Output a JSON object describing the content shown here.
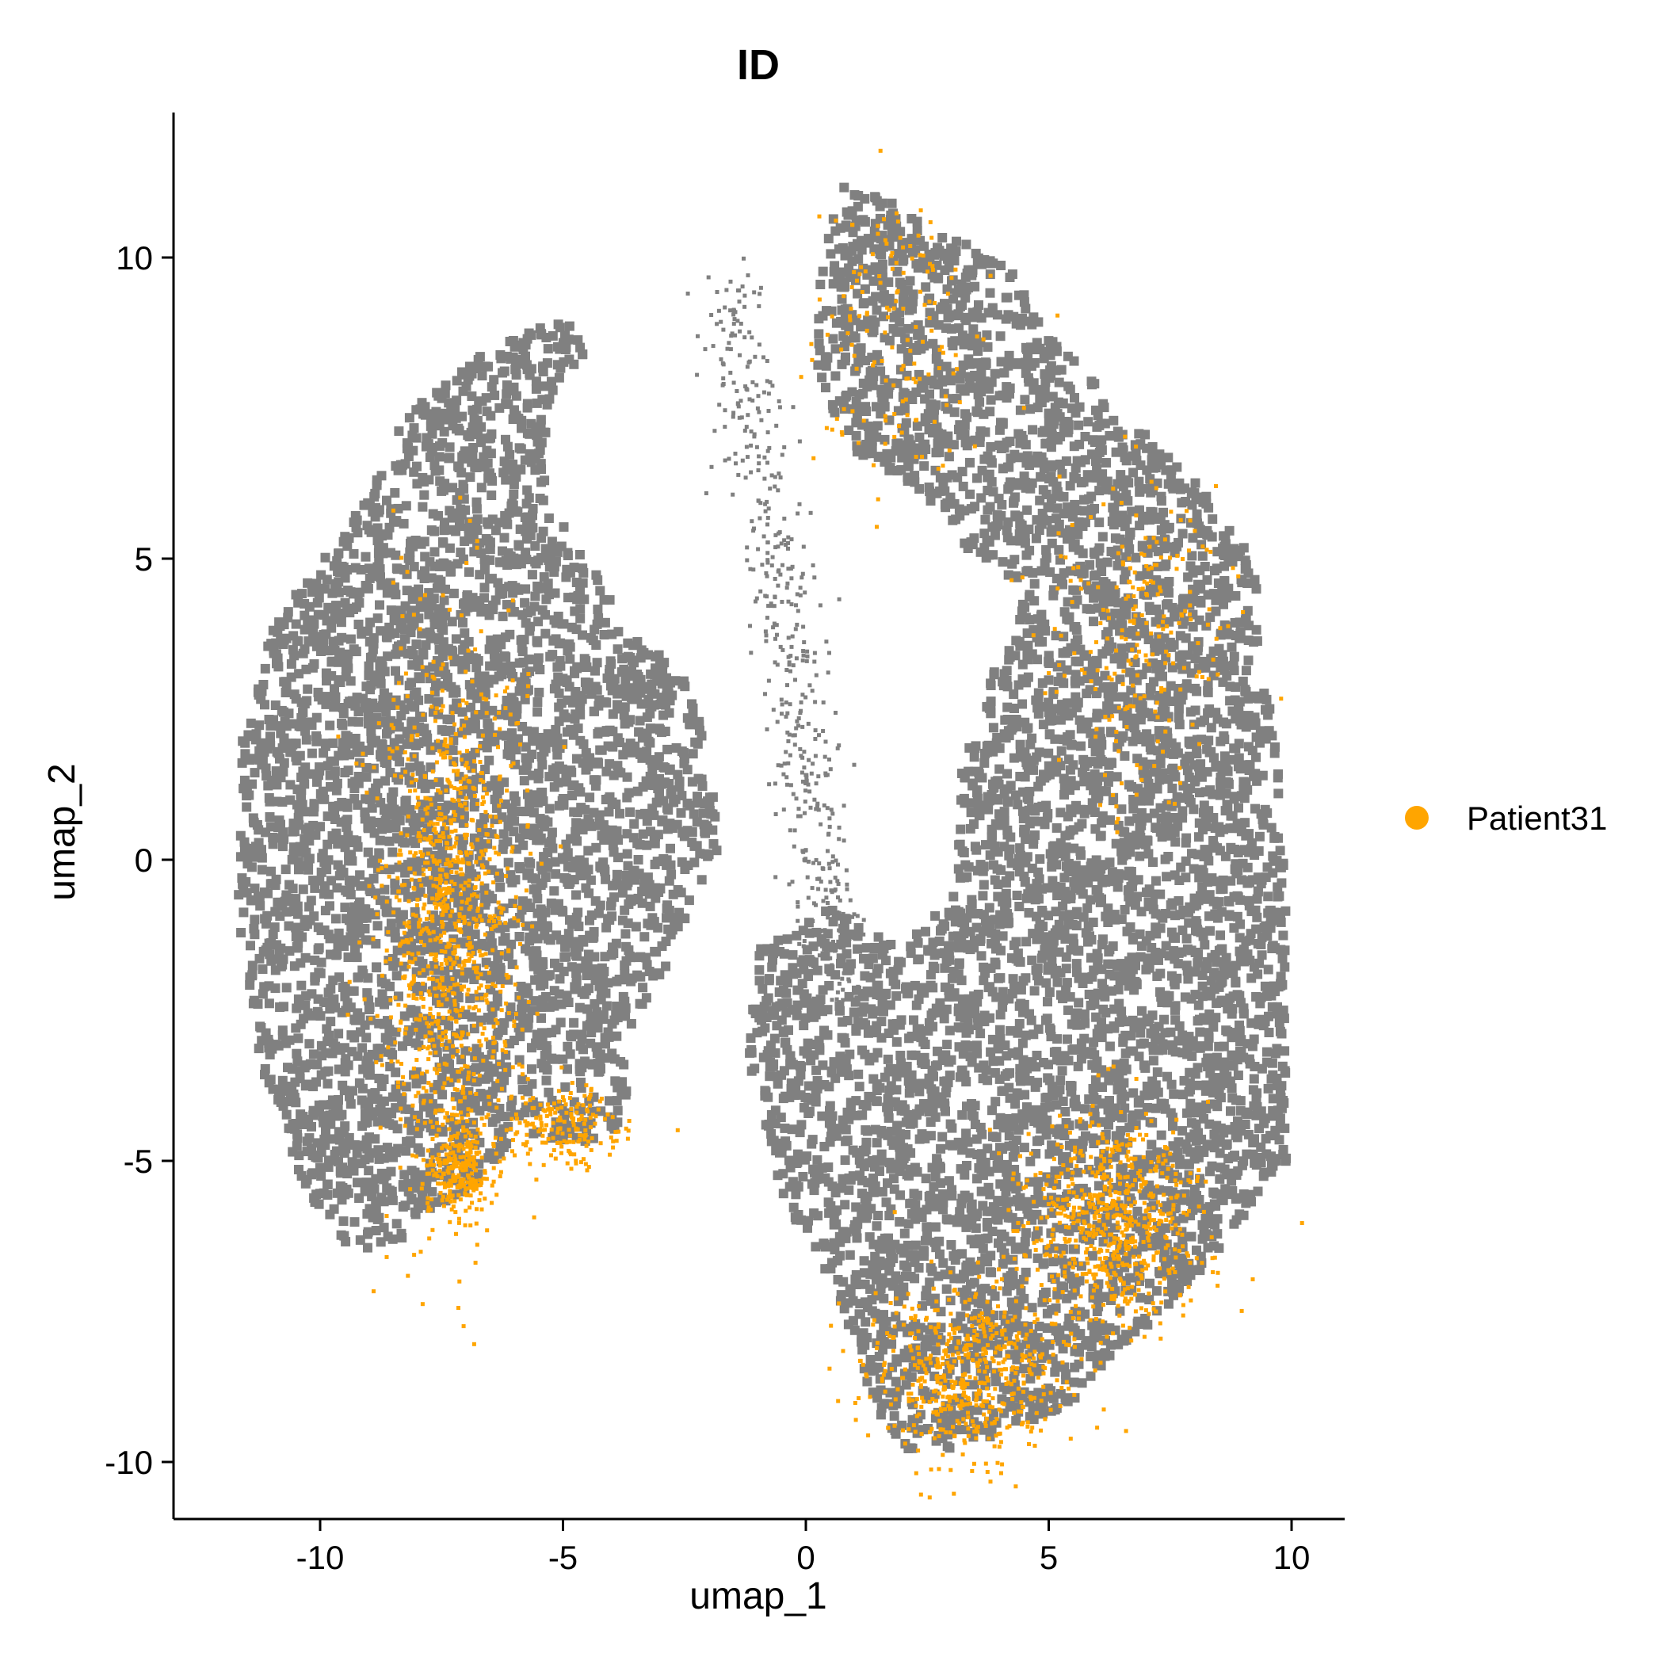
{
  "chart_data": {
    "type": "scatter",
    "title": "ID",
    "xlabel": "umap_1",
    "ylabel": "umap_2",
    "xlim": [
      -13,
      11.2
    ],
    "ylim": [
      -11,
      12.2
    ],
    "x_ticks": [
      -10,
      -5,
      0,
      5,
      10
    ],
    "x_tick_labels": [
      "-10",
      "-5",
      "0",
      "5",
      "10"
    ],
    "y_ticks": [
      -10,
      -5,
      0,
      5,
      10
    ],
    "y_tick_labels": [
      "-10",
      "-5",
      "0",
      "5",
      "10"
    ],
    "grid": false,
    "legend_position": "right",
    "background_color": "#808080",
    "series": [
      {
        "name": "Patient31",
        "color": "#FFA500",
        "clusters": [
          {
            "center": [
              -7.3,
              -1.0
            ],
            "spread": [
              0.7,
              2.3
            ],
            "weight": 0.55
          },
          {
            "center": [
              -7.2,
              -5.2
            ],
            "spread": [
              0.35,
              0.35
            ],
            "weight": 0.12
          },
          {
            "center": [
              -5.0,
              -4.4
            ],
            "spread": [
              0.6,
              0.35
            ],
            "weight": 0.1
          },
          {
            "center": [
              3.3,
              -8.6
            ],
            "spread": [
              1.0,
              0.7
            ],
            "weight": 0.3
          },
          {
            "center": [
              6.3,
              -6.0
            ],
            "spread": [
              0.9,
              0.9
            ],
            "weight": 0.35
          },
          {
            "center": [
              6.8,
              3.8
            ],
            "spread": [
              0.9,
              1.3
            ],
            "weight": 0.12
          },
          {
            "center": [
              1.8,
              8.5
            ],
            "spread": [
              1.0,
              1.2
            ],
            "weight": 0.08
          }
        ]
      }
    ]
  },
  "legend": {
    "items": [
      {
        "label": "Patient31",
        "color": "#FFA500"
      }
    ]
  }
}
